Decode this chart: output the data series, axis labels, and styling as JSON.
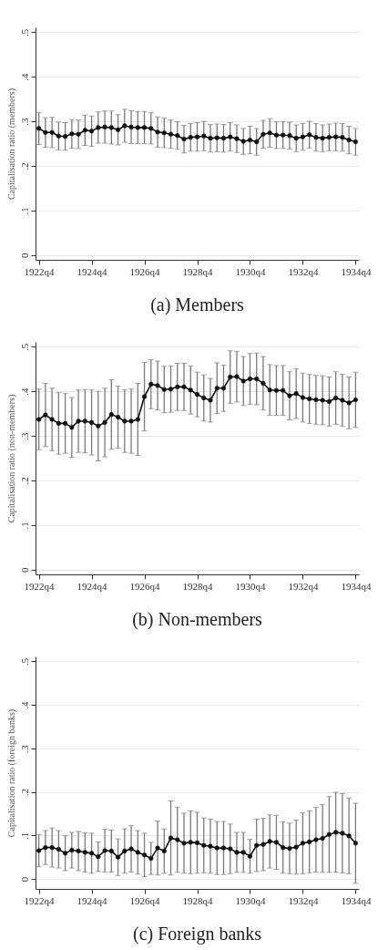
{
  "chart_data": [
    {
      "type": "line",
      "title": "(a) Members",
      "ylabel": "Capitalisation ratio (members)",
      "categories": [
        "1922q4",
        null,
        null,
        null,
        null,
        null,
        null,
        null,
        "1924q4",
        null,
        null,
        null,
        null,
        null,
        null,
        null,
        "1926q4",
        null,
        null,
        null,
        null,
        null,
        null,
        null,
        "1928q4",
        null,
        null,
        null,
        null,
        null,
        null,
        null,
        "1930q4",
        null,
        null,
        null,
        null,
        null,
        null,
        null,
        "1932q4",
        null,
        null,
        null,
        null,
        null,
        null,
        null,
        "1934q4"
      ],
      "series": [
        {
          "color": "#111111",
          "values": [
            0.284,
            0.275,
            0.275,
            0.267,
            0.266,
            0.272,
            0.271,
            0.28,
            0.278,
            0.286,
            0.287,
            0.286,
            0.281,
            0.29,
            0.287,
            0.286,
            0.286,
            0.284,
            0.276,
            0.274,
            0.271,
            0.268,
            0.26,
            0.264,
            0.265,
            0.267,
            0.262,
            0.263,
            0.262,
            0.265,
            0.261,
            0.255,
            0.258,
            0.254,
            0.271,
            0.274,
            0.269,
            0.269,
            0.268,
            0.262,
            0.265,
            0.27,
            0.264,
            0.262,
            0.264,
            0.265,
            0.264,
            0.258,
            0.254
          ],
          "errors": [
            0.036,
            0.033,
            0.034,
            0.031,
            0.031,
            0.032,
            0.032,
            0.034,
            0.034,
            0.035,
            0.036,
            0.037,
            0.034,
            0.037,
            0.037,
            0.036,
            0.036,
            0.035,
            0.034,
            0.033,
            0.032,
            0.031,
            0.031,
            0.031,
            0.032,
            0.033,
            0.031,
            0.031,
            0.031,
            0.032,
            0.031,
            0.029,
            0.031,
            0.03,
            0.031,
            0.032,
            0.03,
            0.03,
            0.03,
            0.03,
            0.03,
            0.03,
            0.031,
            0.03,
            0.03,
            0.031,
            0.031,
            0.031,
            0.03
          ]
        }
      ],
      "ylim": [
        -0.011,
        0.511
      ],
      "yticks": [
        {
          "value": 0,
          "label": "0"
        },
        {
          "value": 0.1,
          "label": ".1"
        },
        {
          "value": 0.2,
          "label": ".2"
        },
        {
          "value": 0.3,
          "label": ".3"
        },
        {
          "value": 0.4,
          "label": ".4"
        },
        {
          "value": 0.5,
          "label": ".5"
        }
      ],
      "grid": "y",
      "marker": "circle",
      "line_style": "solid"
    },
    {
      "type": "line",
      "title": "(b) Non-members",
      "ylabel": "Capitalisation ratio (non-members)",
      "categories": [
        "1922q4",
        null,
        null,
        null,
        null,
        null,
        null,
        null,
        "1924q4",
        null,
        null,
        null,
        null,
        null,
        null,
        null,
        "1926q4",
        null,
        null,
        null,
        null,
        null,
        null,
        null,
        "1928q4",
        null,
        null,
        null,
        null,
        null,
        null,
        null,
        "1930q4",
        null,
        null,
        null,
        null,
        null,
        null,
        null,
        "1932q4",
        null,
        null,
        null,
        null,
        null,
        null,
        null,
        "1934q4"
      ],
      "series": [
        {
          "color": "#111111",
          "values": [
            0.337,
            0.347,
            0.337,
            0.328,
            0.328,
            0.319,
            0.333,
            0.333,
            0.33,
            0.322,
            0.33,
            0.348,
            0.342,
            0.333,
            0.333,
            0.337,
            0.388,
            0.416,
            0.413,
            0.404,
            0.405,
            0.41,
            0.41,
            0.403,
            0.393,
            0.385,
            0.38,
            0.407,
            0.407,
            0.432,
            0.433,
            0.423,
            0.428,
            0.428,
            0.418,
            0.403,
            0.402,
            0.402,
            0.39,
            0.395,
            0.386,
            0.383,
            0.381,
            0.38,
            0.377,
            0.385,
            0.38,
            0.374,
            0.381
          ],
          "errors": [
            0.068,
            0.071,
            0.07,
            0.069,
            0.067,
            0.067,
            0.07,
            0.071,
            0.073,
            0.078,
            0.077,
            0.078,
            0.07,
            0.07,
            0.072,
            0.081,
            0.077,
            0.055,
            0.055,
            0.052,
            0.052,
            0.053,
            0.053,
            0.054,
            0.05,
            0.052,
            0.049,
            0.057,
            0.052,
            0.059,
            0.057,
            0.055,
            0.057,
            0.058,
            0.06,
            0.057,
            0.056,
            0.056,
            0.054,
            0.056,
            0.055,
            0.055,
            0.055,
            0.055,
            0.055,
            0.059,
            0.058,
            0.058,
            0.062
          ]
        }
      ],
      "ylim": [
        -0.011,
        0.511
      ],
      "yticks": [
        {
          "value": 0,
          "label": "0"
        },
        {
          "value": 0.1,
          "label": ".1"
        },
        {
          "value": 0.2,
          "label": ".2"
        },
        {
          "value": 0.3,
          "label": ".3"
        },
        {
          "value": 0.4,
          "label": ".4"
        },
        {
          "value": 0.5,
          "label": ".5"
        }
      ],
      "grid": "y",
      "marker": "circle",
      "line_style": "solid"
    },
    {
      "type": "line",
      "title": "(c) Foreign banks",
      "ylabel": "Capitalisation ratio (foreign banks)",
      "categories": [
        "1922q4",
        null,
        null,
        null,
        null,
        null,
        null,
        null,
        "1924q4",
        null,
        null,
        null,
        null,
        null,
        null,
        null,
        "1926q4",
        null,
        null,
        null,
        null,
        null,
        null,
        null,
        "1928q4",
        null,
        null,
        null,
        null,
        null,
        null,
        null,
        "1930q4",
        null,
        null,
        null,
        null,
        null,
        null,
        null,
        "1932q4",
        null,
        null,
        null,
        null,
        null,
        null,
        null,
        "1934q4"
      ],
      "series": [
        {
          "color": "#111111",
          "values": [
            0.065,
            0.072,
            0.072,
            0.068,
            0.059,
            0.066,
            0.064,
            0.061,
            0.059,
            0.051,
            0.065,
            0.064,
            0.05,
            0.064,
            0.069,
            0.061,
            0.055,
            0.047,
            0.071,
            0.064,
            0.094,
            0.09,
            0.082,
            0.084,
            0.083,
            0.077,
            0.075,
            0.071,
            0.071,
            0.069,
            0.061,
            0.061,
            0.052,
            0.077,
            0.079,
            0.086,
            0.084,
            0.072,
            0.07,
            0.073,
            0.082,
            0.085,
            0.09,
            0.093,
            0.102,
            0.107,
            0.105,
            0.099,
            0.082
          ],
          "errors": [
            0.037,
            0.039,
            0.045,
            0.043,
            0.04,
            0.041,
            0.045,
            0.045,
            0.046,
            0.034,
            0.049,
            0.048,
            0.042,
            0.051,
            0.053,
            0.05,
            0.05,
            0.037,
            0.062,
            0.051,
            0.085,
            0.075,
            0.069,
            0.072,
            0.07,
            0.063,
            0.062,
            0.061,
            0.061,
            0.057,
            0.046,
            0.046,
            0.039,
            0.06,
            0.06,
            0.061,
            0.062,
            0.059,
            0.058,
            0.062,
            0.07,
            0.071,
            0.074,
            0.078,
            0.087,
            0.092,
            0.091,
            0.087,
            0.092
          ]
        }
      ],
      "ylim": [
        -0.023,
        0.511
      ],
      "yticks": [
        {
          "value": 0,
          "label": "0"
        },
        {
          "value": 0.1,
          "label": ".1"
        },
        {
          "value": 0.2,
          "label": ".2"
        },
        {
          "value": 0.3,
          "label": ".3"
        },
        {
          "value": 0.4,
          "label": ".4"
        },
        {
          "value": 0.5,
          "label": ".5"
        }
      ],
      "grid": "y",
      "marker": "circle",
      "line_style": "solid"
    }
  ]
}
